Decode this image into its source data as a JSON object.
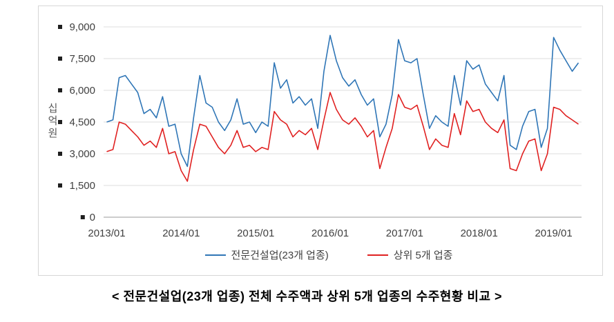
{
  "page": {
    "caption": "< 전문건설업(23개 업종) 전체 수주액과 상위 5개 업종의 수주현황 비교 >"
  },
  "chart_data": {
    "type": "line",
    "title": "",
    "xlabel": "",
    "ylabel": "십억원",
    "ylim": [
      0,
      9000
    ],
    "yticks": [
      0,
      1500,
      3000,
      4500,
      6000,
      7500,
      9000
    ],
    "grid": "horizontal",
    "legend_position": "bottom",
    "xtick_labels": [
      "2013/01",
      "2014/01",
      "2015/01",
      "2016/01",
      "2017/01",
      "2018/01",
      "2019/01"
    ],
    "xtick_indices": [
      0,
      12,
      24,
      36,
      48,
      60,
      72
    ],
    "x": [
      "2013/01",
      "2013/02",
      "2013/03",
      "2013/04",
      "2013/05",
      "2013/06",
      "2013/07",
      "2013/08",
      "2013/09",
      "2013/10",
      "2013/11",
      "2013/12",
      "2014/01",
      "2014/02",
      "2014/03",
      "2014/04",
      "2014/05",
      "2014/06",
      "2014/07",
      "2014/08",
      "2014/09",
      "2014/10",
      "2014/11",
      "2014/12",
      "2015/01",
      "2015/02",
      "2015/03",
      "2015/04",
      "2015/05",
      "2015/06",
      "2015/07",
      "2015/08",
      "2015/09",
      "2015/10",
      "2015/11",
      "2015/12",
      "2016/01",
      "2016/02",
      "2016/03",
      "2016/04",
      "2016/05",
      "2016/06",
      "2016/07",
      "2016/08",
      "2016/09",
      "2016/10",
      "2016/11",
      "2016/12",
      "2017/01",
      "2017/02",
      "2017/03",
      "2017/04",
      "2017/05",
      "2017/06",
      "2017/07",
      "2017/08",
      "2017/09",
      "2017/10",
      "2017/11",
      "2017/12",
      "2018/01",
      "2018/02",
      "2018/03",
      "2018/04",
      "2018/05",
      "2018/06",
      "2018/07",
      "2018/08",
      "2018/09",
      "2018/10",
      "2018/11",
      "2018/12",
      "2019/01",
      "2019/02",
      "2019/03",
      "2019/04",
      "2019/05"
    ],
    "series": [
      {
        "name": "전문건설업(23개 업종)",
        "color": "#2e75b6",
        "values": [
          4500,
          4600,
          6600,
          6700,
          6300,
          5900,
          4900,
          5100,
          4700,
          5700,
          4300,
          4400,
          3000,
          2400,
          4700,
          6700,
          5400,
          5200,
          4500,
          4100,
          4600,
          5600,
          4400,
          4500,
          4000,
          4500,
          4300,
          7300,
          6100,
          6500,
          5400,
          5700,
          5300,
          5600,
          4200,
          6900,
          8600,
          7400,
          6600,
          6200,
          6500,
          5800,
          5300,
          5600,
          3800,
          4400,
          5800,
          8400,
          7400,
          7300,
          7500,
          5800,
          4200,
          4800,
          4500,
          4300,
          6700,
          5300,
          7400,
          7000,
          7200,
          6300,
          5900,
          5500,
          6700,
          3400,
          3200,
          4300,
          5000,
          5100,
          3300,
          4200,
          8500,
          7900,
          7400,
          6900,
          7300
        ]
      },
      {
        "name": "상위 5개 업종",
        "color": "#e02020",
        "values": [
          3100,
          3200,
          4500,
          4400,
          4100,
          3800,
          3400,
          3600,
          3300,
          4200,
          3000,
          3100,
          2200,
          1700,
          3200,
          4400,
          4300,
          3800,
          3300,
          3000,
          3400,
          4100,
          3300,
          3400,
          3100,
          3300,
          3200,
          5000,
          4600,
          4400,
          3800,
          4100,
          3900,
          4200,
          3200,
          4600,
          5900,
          5100,
          4600,
          4400,
          4700,
          4300,
          3800,
          4100,
          2300,
          3300,
          4200,
          5800,
          5200,
          5100,
          5300,
          4300,
          3200,
          3700,
          3400,
          3300,
          4900,
          3900,
          5500,
          5000,
          5100,
          4500,
          4200,
          4000,
          4600,
          2300,
          2200,
          3000,
          3600,
          3700,
          2200,
          3000,
          5200,
          5100,
          4800,
          4600,
          4400
        ]
      }
    ]
  }
}
